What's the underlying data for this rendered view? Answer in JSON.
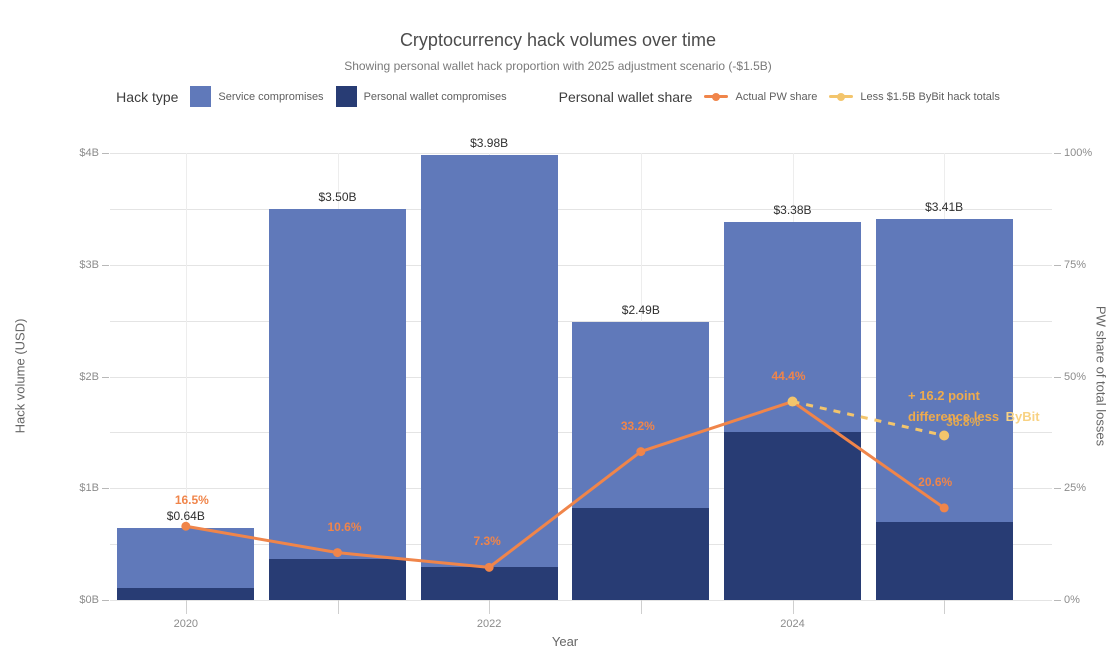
{
  "page": {
    "title": "Cryptocurrency hack volumes over time",
    "subtitle": "Showing personal wallet hack proportion with 2025 adjustment scenario (-$1.5B)"
  },
  "legend": {
    "hack_type": {
      "title": "Hack type",
      "items": [
        {
          "label": "Service compromises",
          "color": "#6079ba"
        },
        {
          "label": "Personal wallet compromises",
          "color": "#283c74"
        }
      ]
    },
    "pw_share": {
      "title": "Personal wallet share",
      "items": [
        {
          "label": "Actual PW share",
          "color": "#f0854a"
        },
        {
          "label": "Less $1.5B ByBit hack totals",
          "color": "#f3c56c"
        }
      ]
    }
  },
  "chart_data": {
    "type": "bar",
    "subtype": "stacked bars with dual-axis percentage lines",
    "x": [
      2020,
      2021,
      2022,
      2023,
      2024,
      2025
    ],
    "x_tick_labels": [
      "2020",
      "",
      "2022",
      "",
      "2024",
      ""
    ],
    "xlabel": "Year",
    "bars": {
      "stacked": true,
      "series": [
        {
          "name": "Personal wallet compromises",
          "color": "#283c74",
          "values": [
            0.106,
            0.371,
            0.291,
            0.827,
            1.501,
            0.702
          ]
        },
        {
          "name": "Service compromises",
          "color": "#6079ba",
          "values": [
            0.534,
            3.129,
            3.689,
            1.663,
            1.879,
            2.708
          ]
        }
      ],
      "totals": [
        0.64,
        3.5,
        3.98,
        2.49,
        3.38,
        3.41
      ],
      "total_labels": [
        "$0.64B",
        "$3.50B",
        "$3.98B",
        "$2.49B",
        "$3.38B",
        "$3.41B"
      ]
    },
    "lines": {
      "actual_pw_share": {
        "name": "Actual PW share",
        "color": "#f0854a",
        "values": [
          16.5,
          10.6,
          7.3,
          33.2,
          44.4,
          20.6
        ],
        "labels": [
          "16.5%",
          "10.6%",
          "7.3%",
          "33.2%",
          "44.4%",
          "20.6%"
        ]
      },
      "adjusted": {
        "name": "Less $1.5B ByBit hack totals",
        "color": "#f3c56c",
        "dashed": true,
        "x": [
          2024,
          2025
        ],
        "values": [
          44.4,
          36.8
        ],
        "end_label": "36.8%",
        "end_label_color": "#e0a852"
      }
    },
    "y_left": {
      "title": "Hack volume (USD)",
      "ticks": [
        "$0B",
        "$1B",
        "$2B",
        "$3B",
        "$4B"
      ],
      "range": [
        0,
        4
      ],
      "minor_step": 0.5
    },
    "y_right": {
      "title": "PW share of total losses",
      "ticks": [
        "0%",
        "25%",
        "50%",
        "75%",
        "100%"
      ],
      "range": [
        0,
        100
      ]
    },
    "annotation": {
      "line1": "+ 16.2 point",
      "line2": "difference less",
      "highlight": "ByBit",
      "color": "#eeab4d",
      "highlight_color": "#f8d283"
    }
  }
}
